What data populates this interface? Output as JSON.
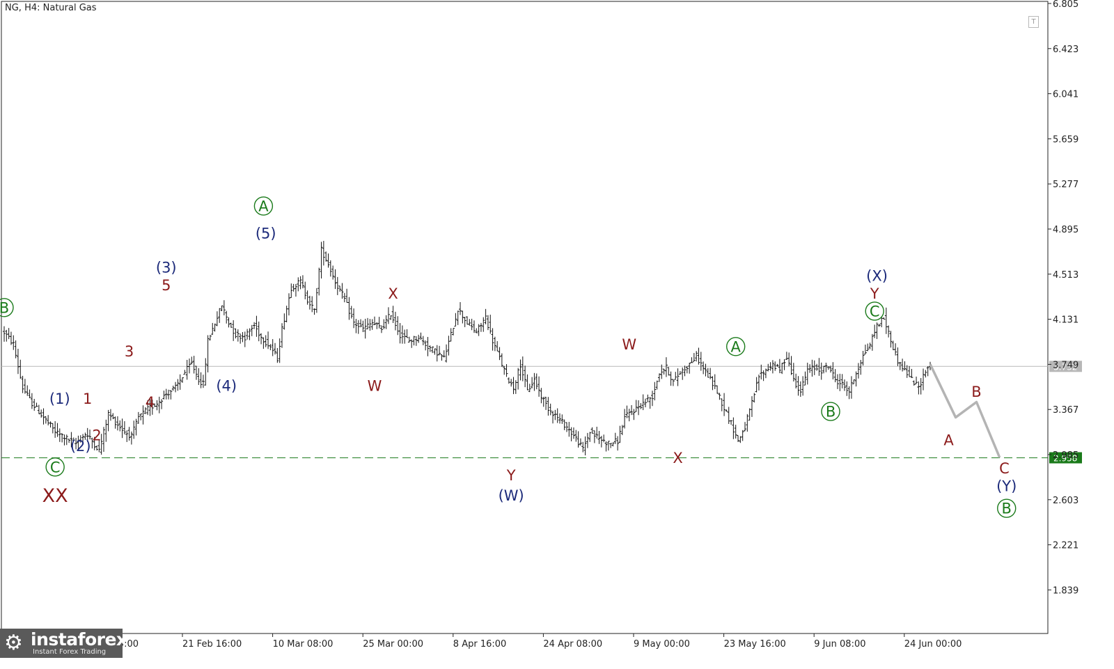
{
  "header": {
    "title": "NG, H4:  Natural Gas"
  },
  "toolbar": {
    "t_button_label": "T"
  },
  "logo": {
    "brand": "instaforex",
    "tagline": "Instant Forex Trading",
    "icon": "gear-icon"
  },
  "colors": {
    "wave_red": "#8b1a1a",
    "wave_navy": "#1c2a7a",
    "wave_green": "#1a7a1a",
    "candles": "#111111",
    "forecast": "#b4b4b4",
    "support_line": "#1a7a1a",
    "current_price_line": "#b8b8b8",
    "price_badge": "#b8b8b8",
    "support_badge": "#1a7a1a"
  },
  "chart_data": {
    "type": "candlestick",
    "title": "NG, H4:  Natural Gas",
    "y_axis": {
      "ticks": [
        "6.805",
        "6.423",
        "6.041",
        "5.659",
        "5.277",
        "4.895",
        "4.513",
        "4.131",
        "3.749",
        "3.367",
        "2.985",
        "2.603",
        "2.221",
        "1.839"
      ],
      "ylim": [
        1.3,
        6.805
      ]
    },
    "x_axis": {
      "ticks": [
        "21 Feb 16:00",
        "10 Mar 08:00",
        "25 Mar 00:00",
        "8 Apr 16:00",
        "24 Apr 08:00",
        "9 May 00:00",
        "23 May 16:00",
        "9 Jun 08:00",
        "24 Jun 00:00"
      ],
      "partial_ticks": [
        "Feb 00:00"
      ]
    },
    "price_path": [
      [
        0,
        4.02
      ],
      [
        4,
        3.92
      ],
      [
        8,
        3.55
      ],
      [
        12,
        3.42
      ],
      [
        17,
        3.3
      ],
      [
        22,
        3.18
      ],
      [
        27,
        3.12
      ],
      [
        31,
        3.08
      ],
      [
        35,
        3.16
      ],
      [
        38,
        3.1
      ],
      [
        41,
        3.02
      ],
      [
        45,
        3.33
      ],
      [
        49,
        3.24
      ],
      [
        52,
        3.18
      ],
      [
        55,
        3.14
      ],
      [
        58,
        3.3
      ],
      [
        62,
        3.37
      ],
      [
        66,
        3.42
      ],
      [
        70,
        3.5
      ],
      [
        74,
        3.55
      ],
      [
        78,
        3.68
      ],
      [
        81,
        3.76
      ],
      [
        84,
        3.62
      ],
      [
        86,
        3.58
      ],
      [
        88,
        3.95
      ],
      [
        91,
        4.1
      ],
      [
        94,
        4.25
      ],
      [
        97,
        4.1
      ],
      [
        100,
        4.0
      ],
      [
        104,
        3.98
      ],
      [
        108,
        4.08
      ],
      [
        111,
        3.98
      ],
      [
        115,
        3.9
      ],
      [
        118,
        3.8
      ],
      [
        120,
        4.05
      ],
      [
        124,
        4.4
      ],
      [
        128,
        4.45
      ],
      [
        131,
        4.3
      ],
      [
        134,
        4.2
      ],
      [
        137,
        4.72
      ],
      [
        140,
        4.6
      ],
      [
        143,
        4.45
      ],
      [
        147,
        4.3
      ],
      [
        151,
        4.1
      ],
      [
        155,
        4.05
      ],
      [
        159,
        4.1
      ],
      [
        163,
        4.05
      ],
      [
        167,
        4.18
      ],
      [
        171,
        4.0
      ],
      [
        175,
        3.95
      ],
      [
        179,
        3.98
      ],
      [
        183,
        3.9
      ],
      [
        187,
        3.85
      ],
      [
        190,
        3.8
      ],
      [
        193,
        4.0
      ],
      [
        196,
        4.22
      ],
      [
        200,
        4.1
      ],
      [
        204,
        4.02
      ],
      [
        208,
        4.15
      ],
      [
        211,
        3.95
      ],
      [
        214,
        3.8
      ],
      [
        217,
        3.65
      ],
      [
        220,
        3.55
      ],
      [
        223,
        3.75
      ],
      [
        226,
        3.52
      ],
      [
        229,
        3.62
      ],
      [
        232,
        3.48
      ],
      [
        235,
        3.38
      ],
      [
        239,
        3.3
      ],
      [
        243,
        3.22
      ],
      [
        247,
        3.12
      ],
      [
        250,
        3.03
      ],
      [
        253,
        3.18
      ],
      [
        257,
        3.12
      ],
      [
        261,
        3.08
      ],
      [
        265,
        3.1
      ],
      [
        268,
        3.3
      ],
      [
        272,
        3.36
      ],
      [
        276,
        3.42
      ],
      [
        280,
        3.48
      ],
      [
        283,
        3.68
      ],
      [
        286,
        3.72
      ],
      [
        289,
        3.6
      ],
      [
        292,
        3.68
      ],
      [
        296,
        3.75
      ],
      [
        299,
        3.82
      ],
      [
        302,
        3.72
      ],
      [
        305,
        3.62
      ],
      [
        308,
        3.52
      ],
      [
        311,
        3.38
      ],
      [
        314,
        3.25
      ],
      [
        317,
        3.1
      ],
      [
        320,
        3.22
      ],
      [
        323,
        3.42
      ],
      [
        326,
        3.65
      ],
      [
        329,
        3.7
      ],
      [
        332,
        3.75
      ],
      [
        335,
        3.7
      ],
      [
        338,
        3.82
      ],
      [
        341,
        3.62
      ],
      [
        344,
        3.52
      ],
      [
        347,
        3.7
      ],
      [
        350,
        3.72
      ],
      [
        353,
        3.7
      ],
      [
        356,
        3.74
      ],
      [
        359,
        3.62
      ],
      [
        362,
        3.58
      ],
      [
        365,
        3.52
      ],
      [
        368,
        3.68
      ],
      [
        371,
        3.82
      ],
      [
        374,
        3.92
      ],
      [
        377,
        4.08
      ],
      [
        380,
        4.14
      ],
      [
        383,
        3.95
      ],
      [
        386,
        3.78
      ],
      [
        389,
        3.7
      ],
      [
        392,
        3.62
      ],
      [
        395,
        3.55
      ],
      [
        398,
        3.7
      ],
      [
        400,
        3.75
      ]
    ],
    "forecast_path": [
      [
        400,
        3.75
      ],
      [
        411,
        3.3
      ],
      [
        420,
        3.43
      ],
      [
        430,
        2.96
      ]
    ],
    "horizontal_lines": [
      {
        "price": 2.958,
        "style": "dashed",
        "label": "2.958"
      },
      {
        "price": 3.732,
        "style": "solid",
        "label": "3.732"
      }
    ],
    "annotations": [
      {
        "text": "B",
        "bar": 0,
        "price": 4.23,
        "color": "green",
        "circled": true
      },
      {
        "text": "C",
        "bar": 22,
        "price": 2.88,
        "color": "green",
        "circled": true
      },
      {
        "text": "XX",
        "bar": 22,
        "price": 2.64,
        "color": "red",
        "size": "large"
      },
      {
        "text": "(1)",
        "bar": 24,
        "price": 3.46,
        "color": "navy"
      },
      {
        "text": "1",
        "bar": 36,
        "price": 3.46,
        "color": "red"
      },
      {
        "text": "(2)",
        "bar": 33,
        "price": 3.06,
        "color": "navy"
      },
      {
        "text": "2",
        "bar": 40,
        "price": 3.15,
        "color": "red"
      },
      {
        "text": "3",
        "bar": 54,
        "price": 3.86,
        "color": "red"
      },
      {
        "text": "4",
        "bar": 63,
        "price": 3.43,
        "color": "red"
      },
      {
        "text": "(3)",
        "bar": 70,
        "price": 4.57,
        "color": "navy"
      },
      {
        "text": "5",
        "bar": 70,
        "price": 4.42,
        "color": "red"
      },
      {
        "text": "(4)",
        "bar": 96,
        "price": 3.57,
        "color": "navy"
      },
      {
        "text": "A",
        "bar": 112,
        "price": 5.09,
        "color": "green",
        "circled": true
      },
      {
        "text": "(5)",
        "bar": 113,
        "price": 4.86,
        "color": "navy"
      },
      {
        "text": "W",
        "bar": 160,
        "price": 3.57,
        "color": "red"
      },
      {
        "text": "X",
        "bar": 168,
        "price": 4.35,
        "color": "red"
      },
      {
        "text": "Y",
        "bar": 219,
        "price": 2.81,
        "color": "red"
      },
      {
        "text": "(W)",
        "bar": 219,
        "price": 2.64,
        "color": "navy"
      },
      {
        "text": "W",
        "bar": 270,
        "price": 3.92,
        "color": "red"
      },
      {
        "text": "X",
        "bar": 291,
        "price": 2.96,
        "color": "red"
      },
      {
        "text": "A",
        "bar": 316,
        "price": 3.9,
        "color": "green",
        "circled": true
      },
      {
        "text": "B",
        "bar": 357,
        "price": 3.35,
        "color": "green",
        "circled": true
      },
      {
        "text": "(X)",
        "bar": 377,
        "price": 4.5,
        "color": "navy"
      },
      {
        "text": "Y",
        "bar": 376,
        "price": 4.35,
        "color": "red"
      },
      {
        "text": "C",
        "bar": 376,
        "price": 4.2,
        "color": "green",
        "circled": true
      },
      {
        "text": "A",
        "bar": 408,
        "price": 3.11,
        "color": "red"
      },
      {
        "text": "B",
        "bar": 420,
        "price": 3.52,
        "color": "red"
      },
      {
        "text": "C",
        "bar": 432,
        "price": 2.87,
        "color": "red"
      },
      {
        "text": "(Y)",
        "bar": 433,
        "price": 2.72,
        "color": "navy"
      },
      {
        "text": "B",
        "bar": 433,
        "price": 2.53,
        "color": "green",
        "circled": true
      }
    ]
  }
}
